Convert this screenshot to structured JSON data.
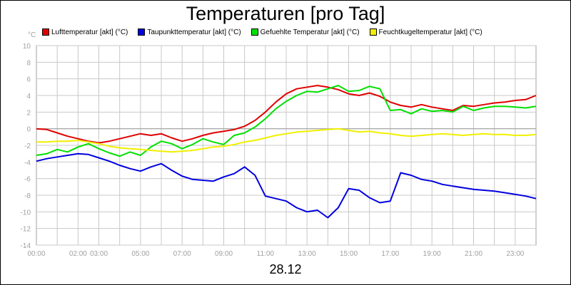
{
  "title": "Temperaturen [pro Tag]",
  "unit_label": "°C",
  "x_caption": "28.12",
  "chart_data": {
    "type": "line",
    "title": "Temperaturen [pro Tag]",
    "xlabel": "28.12",
    "ylabel": "°C",
    "ylim": [
      -14,
      10
    ],
    "xlim": [
      0,
      24
    ],
    "grid": true,
    "legend_position": "top",
    "yticks": [
      10,
      8,
      6,
      4,
      2,
      0,
      -2,
      -4,
      -6,
      -8,
      -10,
      -12,
      -14
    ],
    "xticks": [
      {
        "h": 0,
        "label": "00:00"
      },
      {
        "h": 2,
        "label": "02:00"
      },
      {
        "h": 3,
        "label": "03:00"
      },
      {
        "h": 5,
        "label": "05:00"
      },
      {
        "h": 7,
        "label": "07:00"
      },
      {
        "h": 9,
        "label": "09:00"
      },
      {
        "h": 11,
        "label": "11:00"
      },
      {
        "h": 13,
        "label": "13:00"
      },
      {
        "h": 15,
        "label": "15:00"
      },
      {
        "h": 17,
        "label": "17:00"
      },
      {
        "h": 19,
        "label": "19:00"
      },
      {
        "h": 21,
        "label": "21:00"
      },
      {
        "h": 23,
        "label": "23:00"
      }
    ],
    "x": [
      0,
      0.5,
      1,
      1.5,
      2,
      2.5,
      3,
      3.5,
      4,
      4.5,
      5,
      5.5,
      6,
      6.5,
      7,
      7.5,
      8,
      8.5,
      9,
      9.5,
      10,
      10.5,
      11,
      11.5,
      12,
      12.5,
      13,
      13.5,
      14,
      14.5,
      15,
      15.5,
      16,
      16.5,
      17,
      17.5,
      18,
      18.5,
      19,
      19.5,
      20,
      20.5,
      21,
      21.5,
      22,
      22.5,
      23,
      23.5,
      24
    ],
    "series": [
      {
        "name": "Lufttemperatur [akt] (°C)",
        "color": "#e00000",
        "values": [
          0,
          -0.1,
          -0.5,
          -0.9,
          -1.2,
          -1.5,
          -1.7,
          -1.5,
          -1.2,
          -0.9,
          -0.6,
          -0.8,
          -0.6,
          -1.1,
          -1.5,
          -1.2,
          -0.8,
          -0.5,
          -0.3,
          -0.1,
          0.3,
          1.0,
          2.0,
          3.2,
          4.2,
          4.8,
          5.0,
          5.2,
          5.0,
          4.7,
          4.2,
          4.0,
          4.3,
          3.9,
          3.2,
          2.8,
          2.6,
          2.9,
          2.6,
          2.4,
          2.2,
          2.8,
          2.7,
          2.9,
          3.1,
          3.2,
          3.4,
          3.5,
          4.0
        ]
      },
      {
        "name": "Taupunkttemperatur [akt] (°C)",
        "color": "#0000e0",
        "values": [
          -3.9,
          -3.6,
          -3.4,
          -3.2,
          -3.0,
          -3.1,
          -3.5,
          -3.9,
          -4.4,
          -4.8,
          -5.1,
          -4.6,
          -4.2,
          -5.0,
          -5.7,
          -6.1,
          -6.2,
          -6.3,
          -5.8,
          -5.4,
          -4.6,
          -5.6,
          -8.1,
          -8.4,
          -8.7,
          -9.5,
          -10.0,
          -9.8,
          -10.7,
          -9.5,
          -7.2,
          -7.4,
          -8.3,
          -8.9,
          -8.7,
          -5.3,
          -5.6,
          -6.1,
          -6.3,
          -6.7,
          -6.9,
          -7.1,
          -7.3,
          -7.4,
          -7.5,
          -7.7,
          -7.9,
          -8.1,
          -8.4
        ]
      },
      {
        "name": "Gefuehlte Temperatur [akt] (°C)",
        "color": "#00e000",
        "values": [
          -3.2,
          -3.0,
          -2.5,
          -2.8,
          -2.2,
          -1.8,
          -2.4,
          -2.9,
          -3.3,
          -2.8,
          -3.2,
          -2.2,
          -1.5,
          -1.8,
          -2.4,
          -1.9,
          -1.2,
          -1.6,
          -1.9,
          -0.8,
          -0.5,
          0.2,
          1.2,
          2.4,
          3.3,
          4.0,
          4.5,
          4.4,
          4.8,
          5.2,
          4.5,
          4.6,
          5.1,
          4.8,
          2.2,
          2.3,
          1.8,
          2.4,
          2.1,
          2.2,
          2.0,
          2.7,
          2.2,
          2.5,
          2.7,
          2.7,
          2.6,
          2.5,
          2.7
        ]
      },
      {
        "name": "Feuchtkugeltemperatur [akt] (°C)",
        "color": "#f0f000",
        "values": [
          -1.6,
          -1.6,
          -1.5,
          -1.5,
          -1.4,
          -1.6,
          -1.8,
          -2.1,
          -2.3,
          -2.4,
          -2.5,
          -2.6,
          -2.7,
          -2.8,
          -2.7,
          -2.6,
          -2.4,
          -2.2,
          -2.1,
          -1.9,
          -1.6,
          -1.4,
          -1.1,
          -0.8,
          -0.6,
          -0.4,
          -0.3,
          -0.2,
          -0.1,
          0.0,
          -0.2,
          -0.4,
          -0.3,
          -0.5,
          -0.6,
          -0.8,
          -0.9,
          -0.8,
          -0.7,
          -0.6,
          -0.7,
          -0.8,
          -0.7,
          -0.6,
          -0.7,
          -0.7,
          -0.8,
          -0.8,
          -0.7
        ]
      }
    ]
  }
}
